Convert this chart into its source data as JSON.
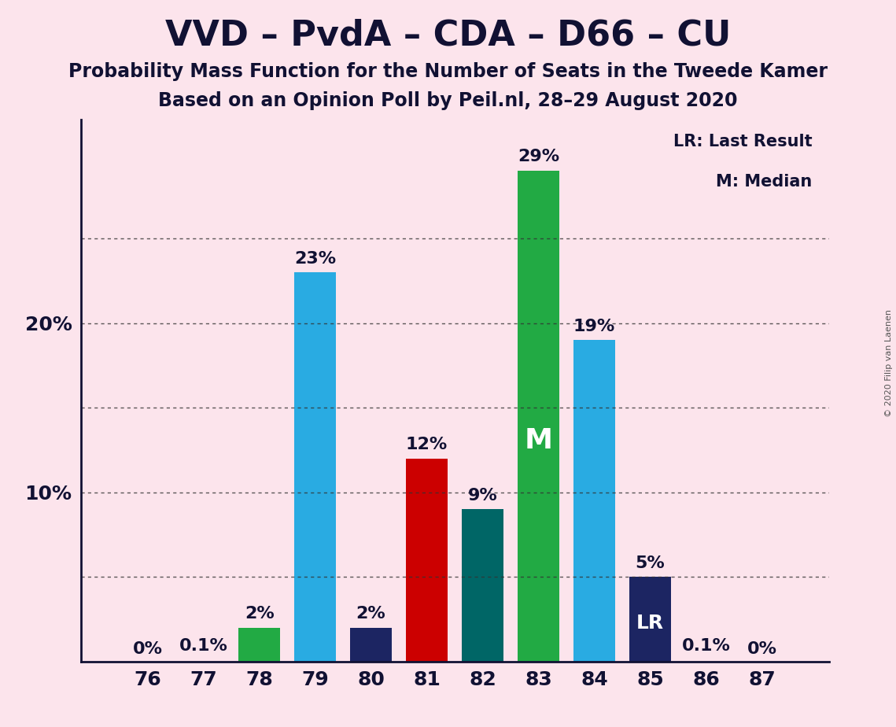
{
  "title": "VVD – PvdA – CDA – D66 – CU",
  "subtitle1": "Probability Mass Function for the Number of Seats in the Tweede Kamer",
  "subtitle2": "Based on an Opinion Poll by Peil.nl, 28–29 August 2020",
  "copyright": "© 2020 Filip van Laenen",
  "categories": [
    76,
    77,
    78,
    79,
    80,
    81,
    82,
    83,
    84,
    85,
    86,
    87
  ],
  "values": [
    0.0,
    0.1,
    2.0,
    23.0,
    2.0,
    12.0,
    9.0,
    29.0,
    19.0,
    5.0,
    0.1,
    0.0
  ],
  "bar_colors": [
    "#fce4ec",
    "#fce4ec",
    "#22aa44",
    "#29abe2",
    "#1c2562",
    "#cc0000",
    "#006666",
    "#22aa44",
    "#29abe2",
    "#1c2562",
    "#fce4ec",
    "#fce4ec"
  ],
  "labels": [
    "0%",
    "0.1%",
    "2%",
    "23%",
    "2%",
    "12%",
    "9%",
    "29%",
    "19%",
    "5%",
    "0.1%",
    "0%"
  ],
  "median_bar_index": 7,
  "lr_bar_index": 9,
  "background_color": "#fce4ec",
  "ylim": [
    0,
    32
  ],
  "ytick_positions": [
    10,
    20
  ],
  "ytick_labels": [
    "10%",
    "20%"
  ],
  "grid_lines_y": [
    5,
    10,
    15,
    20,
    25
  ],
  "legend_text1": "LR: Last Result",
  "legend_text2": "M: Median",
  "title_fontsize": 32,
  "subtitle_fontsize": 17,
  "label_fontsize": 16,
  "axis_fontsize": 18
}
